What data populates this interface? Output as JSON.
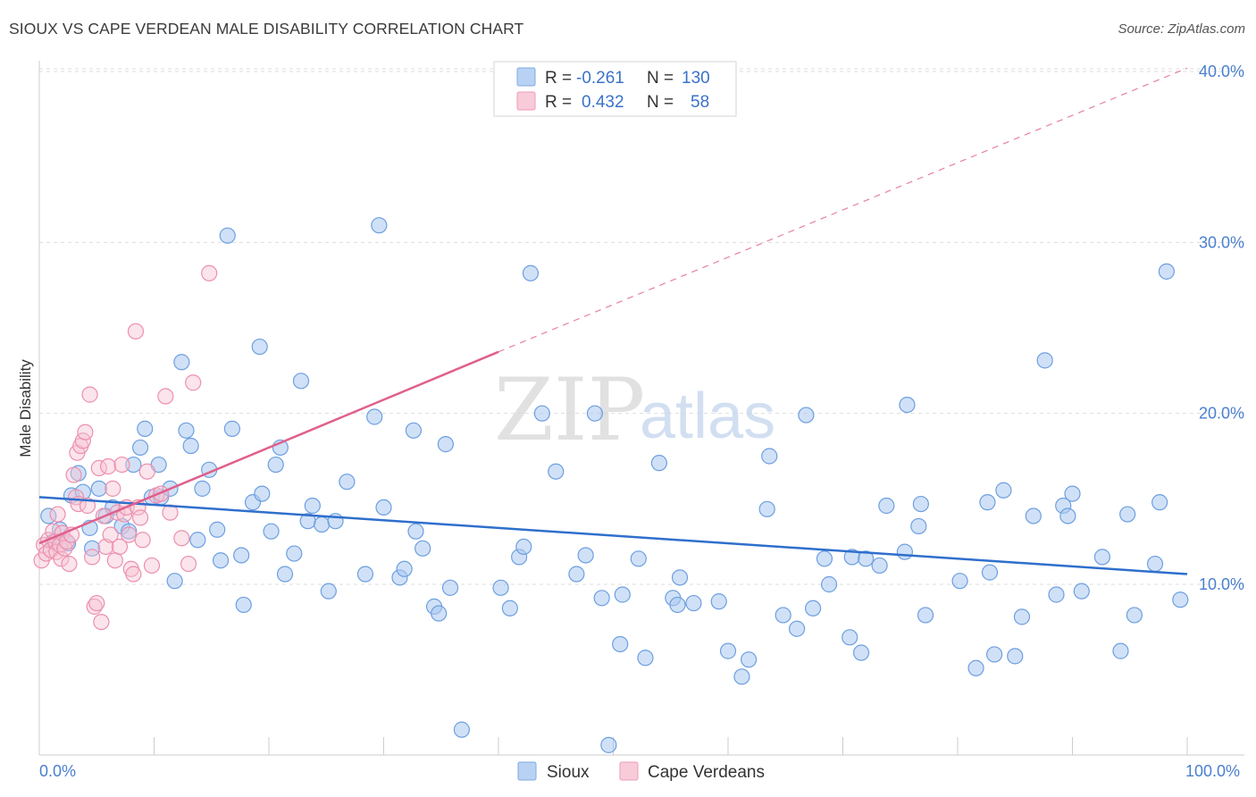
{
  "header": {
    "title": "SIOUX VS CAPE VERDEAN MALE DISABILITY CORRELATION CHART",
    "source": "Source: ZipAtlas.com"
  },
  "watermark": {
    "zip": "ZIP",
    "atlas": "atlas"
  },
  "legend": {
    "rows": [
      {
        "r_label": "R =",
        "r_value": "-0.261",
        "n_label": "N =",
        "n_value": "130",
        "color": "#8fb8ea"
      },
      {
        "r_label": "R =",
        "r_value": "0.432",
        "n_label": "N =",
        "n_value": "58",
        "color": "#f3a8c0"
      }
    ]
  },
  "bottom_legend": {
    "items": [
      {
        "label": "Sioux"
      },
      {
        "label": "Cape Verdeans"
      }
    ]
  },
  "colors": {
    "sioux_fill": "#a9c8f0",
    "sioux_stroke": "#6d9fe0",
    "sioux_line": "#2f6fcc",
    "cape_fill": "#f7c3d3",
    "cape_stroke": "#ec8fae",
    "cape_line": "#e0608c",
    "grid": "#dddddd",
    "tick_text": "#4a7fcf"
  },
  "chart_data": {
    "type": "scatter",
    "title": "SIOUX VS CAPE VERDEAN MALE DISABILITY CORRELATION CHART",
    "xlabel": "",
    "ylabel": "Male Disability",
    "xlim": [
      0,
      100
    ],
    "ylim": [
      0,
      42
    ],
    "x_tick_labels": [
      "0.0%",
      "100.0%"
    ],
    "y_ticks": [
      10,
      20,
      30,
      40
    ],
    "y_tick_labels": [
      "10.0%",
      "20.0%",
      "30.0%",
      "40.0%"
    ],
    "grid": true,
    "legend_position": "top-center",
    "series": [
      {
        "name": "Sioux",
        "r": -0.261,
        "n": 130,
        "trend": {
          "x": [
            0,
            100
          ],
          "y": [
            15.1,
            10.6
          ]
        },
        "points": [
          [
            0.8,
            14.0
          ],
          [
            1.2,
            12.5
          ],
          [
            1.8,
            13.2
          ],
          [
            2.5,
            12.4
          ],
          [
            2.8,
            15.2
          ],
          [
            3.4,
            16.5
          ],
          [
            3.8,
            15.4
          ],
          [
            4.4,
            13.3
          ],
          [
            4.6,
            12.1
          ],
          [
            5.2,
            15.6
          ],
          [
            5.8,
            14.0
          ],
          [
            6.4,
            14.5
          ],
          [
            7.2,
            13.4
          ],
          [
            7.8,
            13.1
          ],
          [
            8.2,
            17.0
          ],
          [
            8.8,
            18.0
          ],
          [
            9.2,
            19.1
          ],
          [
            9.8,
            15.1
          ],
          [
            10.4,
            17.0
          ],
          [
            10.6,
            15.1
          ],
          [
            11.4,
            15.6
          ],
          [
            11.8,
            10.2
          ],
          [
            12.4,
            23.0
          ],
          [
            12.8,
            19.0
          ],
          [
            13.2,
            18.1
          ],
          [
            13.8,
            12.6
          ],
          [
            14.2,
            15.6
          ],
          [
            14.8,
            16.7
          ],
          [
            15.5,
            13.2
          ],
          [
            15.8,
            11.4
          ],
          [
            16.4,
            30.4
          ],
          [
            16.8,
            19.1
          ],
          [
            17.6,
            11.7
          ],
          [
            17.8,
            8.8
          ],
          [
            18.6,
            14.8
          ],
          [
            19.2,
            23.9
          ],
          [
            19.4,
            15.3
          ],
          [
            20.2,
            13.1
          ],
          [
            20.6,
            17.0
          ],
          [
            21.0,
            18.0
          ],
          [
            21.4,
            10.6
          ],
          [
            22.2,
            11.8
          ],
          [
            22.8,
            21.9
          ],
          [
            23.4,
            13.7
          ],
          [
            23.8,
            14.6
          ],
          [
            24.6,
            13.5
          ],
          [
            25.2,
            9.6
          ],
          [
            25.8,
            13.7
          ],
          [
            26.8,
            16.0
          ],
          [
            28.4,
            10.6
          ],
          [
            29.2,
            19.8
          ],
          [
            29.6,
            31.0
          ],
          [
            30.0,
            14.5
          ],
          [
            31.4,
            10.4
          ],
          [
            31.8,
            10.9
          ],
          [
            32.6,
            19.0
          ],
          [
            32.8,
            13.1
          ],
          [
            33.4,
            12.1
          ],
          [
            34.4,
            8.7
          ],
          [
            34.8,
            8.3
          ],
          [
            35.4,
            18.2
          ],
          [
            35.8,
            9.8
          ],
          [
            40.2,
            9.8
          ],
          [
            41.0,
            8.6
          ],
          [
            41.8,
            11.6
          ],
          [
            42.2,
            12.2
          ],
          [
            42.8,
            28.2
          ],
          [
            43.8,
            20.0
          ],
          [
            45.0,
            16.6
          ],
          [
            46.8,
            10.6
          ],
          [
            47.6,
            11.7
          ],
          [
            48.4,
            20.0
          ],
          [
            49.0,
            9.2
          ],
          [
            50.6,
            6.5
          ],
          [
            50.8,
            9.4
          ],
          [
            52.2,
            11.5
          ],
          [
            52.8,
            5.7
          ],
          [
            54.0,
            17.1
          ],
          [
            55.2,
            9.2
          ],
          [
            55.6,
            8.8
          ],
          [
            55.8,
            10.4
          ],
          [
            57.0,
            8.9
          ],
          [
            59.2,
            9.0
          ],
          [
            60.0,
            6.1
          ],
          [
            61.2,
            4.6
          ],
          [
            61.8,
            5.6
          ],
          [
            63.6,
            17.5
          ],
          [
            64.8,
            8.2
          ],
          [
            66.0,
            7.4
          ],
          [
            66.8,
            19.9
          ],
          [
            67.4,
            8.6
          ],
          [
            68.4,
            11.5
          ],
          [
            68.8,
            10.0
          ],
          [
            70.6,
            6.9
          ],
          [
            70.8,
            11.6
          ],
          [
            71.6,
            6.0
          ],
          [
            72.0,
            11.5
          ],
          [
            73.2,
            11.1
          ],
          [
            75.4,
            11.9
          ],
          [
            75.6,
            20.5
          ],
          [
            76.6,
            13.4
          ],
          [
            76.8,
            14.7
          ],
          [
            77.2,
            8.2
          ],
          [
            80.2,
            10.2
          ],
          [
            81.6,
            5.1
          ],
          [
            82.6,
            14.8
          ],
          [
            82.8,
            10.7
          ],
          [
            84.0,
            15.5
          ],
          [
            85.0,
            5.8
          ],
          [
            85.6,
            8.1
          ],
          [
            86.6,
            14.0
          ],
          [
            87.6,
            23.1
          ],
          [
            88.6,
            9.4
          ],
          [
            89.2,
            14.6
          ],
          [
            89.6,
            14.0
          ],
          [
            90.0,
            15.3
          ],
          [
            90.8,
            9.6
          ],
          [
            92.6,
            11.6
          ],
          [
            94.2,
            6.1
          ],
          [
            94.8,
            14.1
          ],
          [
            95.4,
            8.2
          ],
          [
            97.2,
            11.2
          ],
          [
            97.6,
            14.8
          ],
          [
            98.2,
            28.3
          ],
          [
            99.4,
            9.1
          ],
          [
            36.8,
            1.5
          ],
          [
            49.6,
            0.6
          ],
          [
            63.4,
            14.4
          ],
          [
            73.8,
            14.6
          ],
          [
            83.2,
            5.9
          ]
        ]
      },
      {
        "name": "Cape Verdeans",
        "r": 0.432,
        "n": 58,
        "trend": {
          "x": [
            0,
            40
          ],
          "y": [
            12.4,
            23.6
          ]
        },
        "trend_extension": {
          "x": [
            40,
            100
          ],
          "y": [
            23.6,
            40.2
          ]
        },
        "points": [
          [
            0.2,
            11.4
          ],
          [
            0.4,
            12.3
          ],
          [
            0.6,
            11.8
          ],
          [
            0.8,
            12.6
          ],
          [
            1.0,
            12.0
          ],
          [
            1.2,
            13.1
          ],
          [
            1.4,
            12.5
          ],
          [
            1.5,
            11.9
          ],
          [
            1.6,
            14.1
          ],
          [
            1.8,
            12.3
          ],
          [
            1.9,
            11.5
          ],
          [
            2.0,
            13.0
          ],
          [
            2.2,
            12.1
          ],
          [
            2.4,
            12.5
          ],
          [
            2.6,
            11.2
          ],
          [
            2.8,
            12.9
          ],
          [
            3.0,
            16.4
          ],
          [
            3.2,
            15.1
          ],
          [
            3.3,
            17.7
          ],
          [
            3.4,
            14.7
          ],
          [
            3.6,
            18.1
          ],
          [
            3.8,
            18.4
          ],
          [
            4.0,
            18.9
          ],
          [
            4.2,
            14.6
          ],
          [
            4.4,
            21.1
          ],
          [
            4.6,
            11.6
          ],
          [
            4.8,
            8.7
          ],
          [
            5.0,
            8.9
          ],
          [
            5.2,
            16.8
          ],
          [
            5.4,
            7.8
          ],
          [
            5.6,
            14.0
          ],
          [
            5.8,
            12.2
          ],
          [
            6.0,
            16.9
          ],
          [
            6.2,
            12.9
          ],
          [
            6.4,
            15.6
          ],
          [
            6.6,
            11.4
          ],
          [
            6.8,
            14.2
          ],
          [
            7.0,
            12.2
          ],
          [
            7.2,
            17.0
          ],
          [
            7.4,
            14.1
          ],
          [
            7.6,
            14.5
          ],
          [
            7.8,
            12.9
          ],
          [
            8.0,
            10.9
          ],
          [
            8.2,
            10.6
          ],
          [
            8.4,
            24.8
          ],
          [
            8.6,
            14.5
          ],
          [
            8.8,
            13.9
          ],
          [
            9.0,
            12.6
          ],
          [
            9.4,
            16.6
          ],
          [
            9.8,
            11.1
          ],
          [
            10.2,
            15.2
          ],
          [
            10.6,
            15.3
          ],
          [
            11.0,
            21.0
          ],
          [
            11.4,
            14.2
          ],
          [
            12.4,
            12.7
          ],
          [
            13.0,
            11.2
          ],
          [
            13.4,
            21.8
          ],
          [
            14.8,
            28.2
          ]
        ]
      }
    ]
  }
}
